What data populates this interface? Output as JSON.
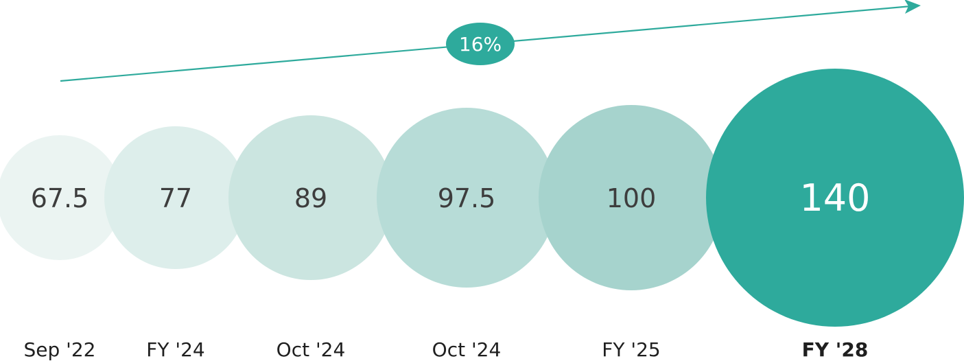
{
  "chart_data": {
    "type": "bubble",
    "categories": [
      "Sep '22",
      "FY '24",
      "Oct '24",
      "Oct '24",
      "FY '25",
      "FY '28"
    ],
    "values": [
      67.5,
      77,
      89,
      97.5,
      100,
      140
    ],
    "value_labels": [
      "67.5",
      "77",
      "89",
      "97.5",
      "100",
      "140"
    ],
    "highlight_index": 5,
    "growth_annotation": "16%",
    "colors": {
      "bubbles": [
        "#ebf4f2",
        "#ddeeeb",
        "#cbe5e0",
        "#b7dcd7",
        "#a6d3cd",
        "#2eaa9c"
      ],
      "accent": "#2eaa9c",
      "text": "#3d3d3d",
      "highlight_text": "#ffffff"
    }
  }
}
